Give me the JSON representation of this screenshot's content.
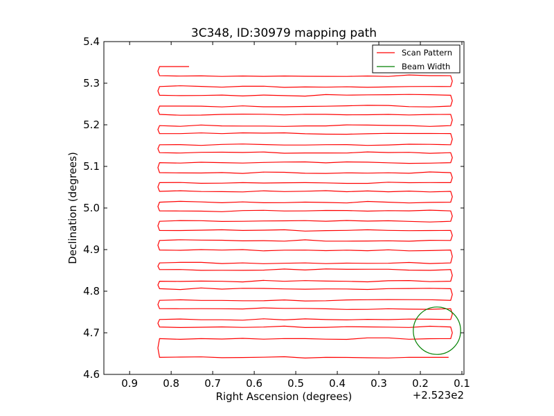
{
  "chart_data": {
    "type": "line",
    "title": "3C348, ID:30979 mapping path",
    "xlabel": "Right Ascension (degrees)",
    "ylabel": "Declination (degrees)",
    "x_offset_label": "+2.523e2",
    "xlim": [
      0.962,
      0.095
    ],
    "ylim": [
      4.6,
      5.4
    ],
    "xticks": [
      0.9,
      0.8,
      0.7,
      0.6,
      0.5,
      0.4,
      0.3,
      0.2,
      0.1
    ],
    "xtick_labels": [
      "0.9",
      "0.8",
      "0.7",
      "0.6",
      "0.5",
      "0.4",
      "0.3",
      "0.2",
      "0.1"
    ],
    "yticks": [
      4.6,
      4.7,
      4.8,
      4.9,
      5.0,
      5.1,
      5.2,
      5.3,
      5.4
    ],
    "ytick_labels": [
      "4.6",
      "4.7",
      "4.8",
      "4.9",
      "5.0",
      "5.1",
      "5.2",
      "5.3",
      "5.4"
    ],
    "legend_position": "top-right",
    "series": [
      {
        "name": "Scan Pattern",
        "color": "#ff0000",
        "kind": "raster",
        "start": [
          0.185,
          4.641
        ],
        "end": [
          0.757,
          5.34
        ],
        "left_x": 0.828,
        "right_x": 0.127,
        "ra_at_dec_start": [
          0.13,
          4.641
        ],
        "rows_dec": [
          4.641,
          4.686,
          4.714,
          4.732,
          4.758,
          4.778,
          4.806,
          4.824,
          4.852,
          4.868,
          4.899,
          4.922,
          4.946,
          4.968,
          4.993,
          5.014,
          5.04,
          5.061,
          5.085,
          5.109,
          5.133,
          5.152,
          5.179,
          5.198,
          5.225,
          5.245,
          5.271,
          5.292,
          5.318,
          5.34
        ]
      },
      {
        "name": "Beam Width",
        "color": "#008000",
        "kind": "circle",
        "center": [
          0.16,
          4.705
        ],
        "radius": 0.057
      }
    ]
  }
}
